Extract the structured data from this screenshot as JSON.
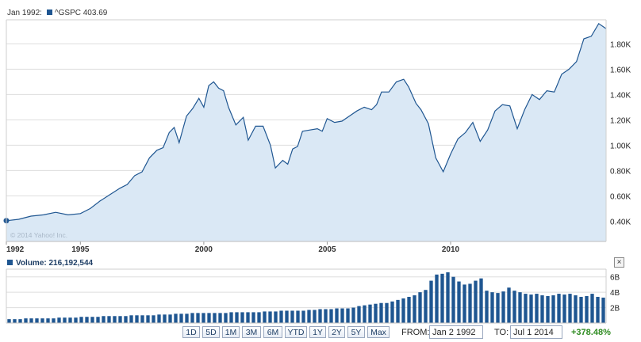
{
  "legend": {
    "date": "Jan 1992:",
    "series_label": "^GSPC 403.69"
  },
  "volume_legend": {
    "label": "Volume:",
    "value": "216,192,544"
  },
  "watermark": "© 2014 Yahoo! Inc.",
  "close_button": "×",
  "range_buttons": [
    "1D",
    "5D",
    "1M",
    "3M",
    "6M",
    "YTD",
    "1Y",
    "2Y",
    "5Y",
    "Max"
  ],
  "from": {
    "label": "FROM:",
    "value": "Jan 2 1992"
  },
  "to": {
    "label": "TO:",
    "value": "Jul 1 2014"
  },
  "change": "+378.48%",
  "colors": {
    "line": "#1f5691",
    "area": "#dae8f5",
    "bars": "#1f5691",
    "grid": "#dddddd",
    "change": "#2e8b20"
  },
  "chart_data": [
    {
      "type": "area",
      "series": [
        {
          "name": "^GSPC"
        }
      ],
      "x_ticks": [
        "1992",
        "1995",
        "2000",
        "2005",
        "2010"
      ],
      "y_ticks": [
        "0.40K",
        "0.60K",
        "0.80K",
        "1.00K",
        "1.20K",
        "1.40K",
        "1.60K",
        "1.80K"
      ],
      "ylim": [
        240,
        1990
      ],
      "grid": true,
      "points": [
        [
          1992.0,
          404
        ],
        [
          1992.5,
          415
        ],
        [
          1993.0,
          440
        ],
        [
          1993.5,
          450
        ],
        [
          1994.0,
          470
        ],
        [
          1994.5,
          450
        ],
        [
          1995.0,
          460
        ],
        [
          1995.4,
          500
        ],
        [
          1995.8,
          560
        ],
        [
          1996.2,
          610
        ],
        [
          1996.6,
          660
        ],
        [
          1996.9,
          690
        ],
        [
          1997.2,
          760
        ],
        [
          1997.5,
          790
        ],
        [
          1997.8,
          900
        ],
        [
          1998.1,
          960
        ],
        [
          1998.35,
          980
        ],
        [
          1998.6,
          1100
        ],
        [
          1998.8,
          1140
        ],
        [
          1999.0,
          1020
        ],
        [
          1999.3,
          1230
        ],
        [
          1999.55,
          1290
        ],
        [
          1999.8,
          1370
        ],
        [
          2000.0,
          1300
        ],
        [
          2000.2,
          1470
        ],
        [
          2000.4,
          1500
        ],
        [
          2000.6,
          1450
        ],
        [
          2000.8,
          1430
        ],
        [
          2001.0,
          1300
        ],
        [
          2001.3,
          1160
        ],
        [
          2001.6,
          1220
        ],
        [
          2001.8,
          1040
        ],
        [
          2002.1,
          1150
        ],
        [
          2002.4,
          1150
        ],
        [
          2002.7,
          1000
        ],
        [
          2002.9,
          820
        ],
        [
          2003.2,
          880
        ],
        [
          2003.4,
          850
        ],
        [
          2003.6,
          970
        ],
        [
          2003.8,
          990
        ],
        [
          2004.0,
          1110
        ],
        [
          2004.3,
          1120
        ],
        [
          2004.6,
          1130
        ],
        [
          2004.8,
          1110
        ],
        [
          2005.0,
          1210
        ],
        [
          2005.3,
          1180
        ],
        [
          2005.6,
          1190
        ],
        [
          2005.9,
          1230
        ],
        [
          2006.2,
          1270
        ],
        [
          2006.5,
          1300
        ],
        [
          2006.8,
          1280
        ],
        [
          2007.0,
          1320
        ],
        [
          2007.2,
          1420
        ],
        [
          2007.5,
          1420
        ],
        [
          2007.8,
          1500
        ],
        [
          2008.1,
          1520
        ],
        [
          2008.3,
          1460
        ],
        [
          2008.6,
          1330
        ],
        [
          2008.8,
          1280
        ],
        [
          2009.1,
          1170
        ],
        [
          2009.4,
          900
        ],
        [
          2009.7,
          790
        ],
        [
          2010.0,
          930
        ],
        [
          2010.3,
          1050
        ],
        [
          2010.6,
          1100
        ],
        [
          2010.9,
          1180
        ],
        [
          2011.2,
          1030
        ],
        [
          2011.5,
          1120
        ],
        [
          2011.8,
          1270
        ],
        [
          2012.1,
          1320
        ],
        [
          2012.4,
          1310
        ],
        [
          2012.7,
          1130
        ],
        [
          2013.0,
          1280
        ],
        [
          2013.3,
          1400
        ],
        [
          2013.6,
          1360
        ],
        [
          2013.9,
          1430
        ],
        [
          2014.2,
          1420
        ],
        [
          2014.5,
          1560
        ],
        [
          2014.8,
          1600
        ],
        [
          2015.1,
          1660
        ],
        [
          2015.4,
          1840
        ],
        [
          2015.7,
          1860
        ],
        [
          2016.0,
          1960
        ],
        [
          2016.3,
          1920
        ]
      ]
    },
    {
      "type": "bar",
      "series": [
        {
          "name": "Volume"
        }
      ],
      "y_ticks": [
        "2B",
        "4B",
        "6B"
      ],
      "ylim": [
        0,
        7
      ],
      "values": [
        0.5,
        0.5,
        0.5,
        0.6,
        0.6,
        0.6,
        0.6,
        0.6,
        0.6,
        0.7,
        0.7,
        0.7,
        0.7,
        0.8,
        0.8,
        0.8,
        0.8,
        0.9,
        0.9,
        0.9,
        0.9,
        0.9,
        1.0,
        1.0,
        1.0,
        1.0,
        1.0,
        1.1,
        1.1,
        1.1,
        1.2,
        1.2,
        1.2,
        1.3,
        1.3,
        1.3,
        1.3,
        1.3,
        1.3,
        1.3,
        1.4,
        1.4,
        1.4,
        1.4,
        1.4,
        1.4,
        1.5,
        1.5,
        1.5,
        1.6,
        1.6,
        1.6,
        1.6,
        1.6,
        1.7,
        1.7,
        1.8,
        1.8,
        1.8,
        1.9,
        1.9,
        1.9,
        2.0,
        2.2,
        2.3,
        2.4,
        2.5,
        2.6,
        2.6,
        2.8,
        3.0,
        3.2,
        3.4,
        3.6,
        4.0,
        4.3,
        5.5,
        6.3,
        6.4,
        6.6,
        6.0,
        5.4,
        5.0,
        5.1,
        5.5,
        5.8,
        4.2,
        4.0,
        3.9,
        4.1,
        4.6,
        4.2,
        4.0,
        3.8,
        3.7,
        3.8,
        3.6,
        3.5,
        3.6,
        3.8,
        3.7,
        3.8,
        3.6,
        3.4,
        3.5,
        3.8,
        3.4,
        3.3
      ]
    }
  ]
}
